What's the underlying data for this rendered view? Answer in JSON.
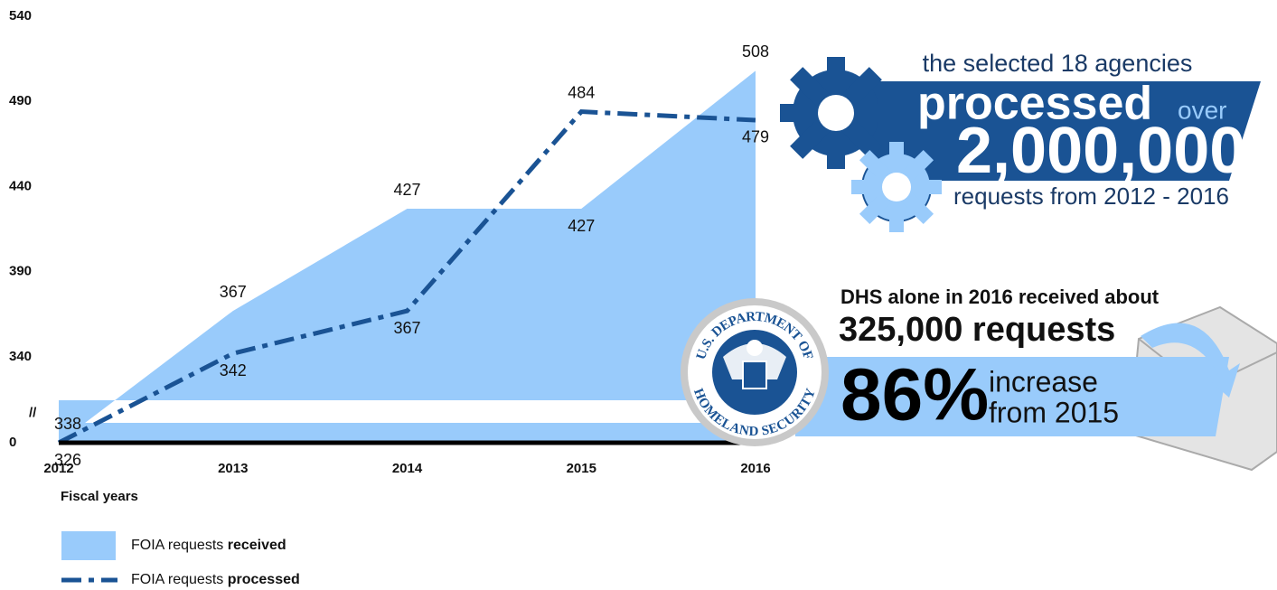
{
  "chart_data": {
    "type": "area-line",
    "categories": [
      "2012",
      "2013",
      "2014",
      "2015",
      "2016"
    ],
    "x_label": "Fiscal years",
    "series": [
      {
        "name": "FOIA requests received",
        "color": "#99cbfb",
        "style": "area",
        "values": [
          326,
          367,
          427,
          427,
          508
        ]
      },
      {
        "name": "FOIA requests processed",
        "color": "#1a5394",
        "style": "dash-dot",
        "values": [
          338,
          342,
          367,
          484,
          479
        ]
      }
    ],
    "ylim": [
      0,
      540
    ],
    "yticks": [
      0,
      340,
      390,
      440,
      490,
      540
    ],
    "axis_break_label": "//",
    "grid": false,
    "legend": "bottom-left"
  },
  "callouts": {
    "processed": {
      "lead": "the selected 18 agencies",
      "verb": "processed",
      "over": "over",
      "number": "2,000,000",
      "tail": "requests from 2012 - 2016"
    },
    "dhs": {
      "lead": "DHS alone in 2016 received about",
      "number": "325,000 requests",
      "percent": "86%",
      "increase": "increase",
      "from": "from 2015",
      "seal_top": "U.S. DEPARTMENT OF",
      "seal_bottom": "HOMELAND SECURITY"
    }
  }
}
